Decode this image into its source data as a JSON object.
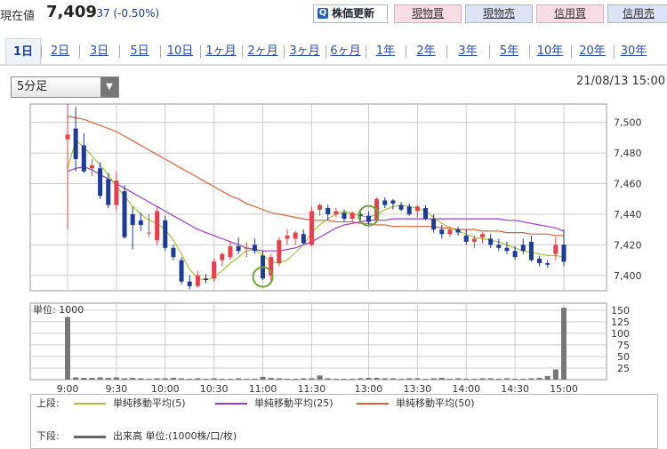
{
  "header": {
    "price_label": "現在値",
    "price_value": "7,409",
    "price_change": "-37 (-0.50%)",
    "update_button": "株価更新",
    "trade_buttons": [
      "現物買",
      "現物売",
      "信用買",
      "信用売"
    ]
  },
  "tabs": [
    "1日",
    "2日",
    "3日",
    "5日",
    "10日",
    "1ヶ月",
    "2ヶ月",
    "3ヶ月",
    "6ヶ月",
    "1年",
    "2年",
    "3年",
    "5年",
    "10年",
    "20年",
    "30年"
  ],
  "active_tab": "1日",
  "interval_select": "5分足",
  "datetime": "21/08/13 15:00",
  "colors": {
    "up": "#e0434e",
    "down": "#1f3a93",
    "ma5": "#a8c23a",
    "ma25": "#9b3fc9",
    "ma50": "#e0603a",
    "volume": "#777777"
  },
  "chart_data": {
    "type": "candlestick",
    "x_ticks": [
      "9:00",
      "9:30",
      "10:00",
      "10:30",
      "11:00",
      "11:30",
      "13:00",
      "13:30",
      "14:00",
      "14:30",
      "15:00"
    ],
    "price_ticks": [
      "7,500",
      "7,480",
      "7,460",
      "7,440",
      "7,420",
      "7,400"
    ],
    "price_ylim": [
      7390,
      7512
    ],
    "volume_ticks": [
      "150",
      "125",
      "100",
      "75",
      "50",
      "25"
    ],
    "volume_ylim": [
      0,
      165
    ],
    "volume_unit_label": "単位: 1000",
    "candles": [
      {
        "t": "9:00",
        "o": 7489,
        "h": 7512,
        "l": 7430,
        "c": 7492
      },
      {
        "t": "9:05",
        "o": 7496,
        "h": 7510,
        "l": 7468,
        "c": 7476
      },
      {
        "t": "9:10",
        "o": 7485,
        "h": 7493,
        "l": 7467,
        "c": 7468
      },
      {
        "t": "9:15",
        "o": 7470,
        "h": 7476,
        "l": 7465,
        "c": 7472
      },
      {
        "t": "9:20",
        "o": 7470,
        "h": 7474,
        "l": 7450,
        "c": 7452
      },
      {
        "t": "9:25",
        "o": 7463,
        "h": 7467,
        "l": 7444,
        "c": 7446
      },
      {
        "t": "9:30",
        "o": 7446,
        "h": 7468,
        "l": 7442,
        "c": 7462
      },
      {
        "t": "9:35",
        "o": 7455,
        "h": 7459,
        "l": 7424,
        "c": 7425
      },
      {
        "t": "9:40",
        "o": 7440,
        "h": 7445,
        "l": 7417,
        "c": 7433
      },
      {
        "t": "9:45",
        "o": 7436,
        "h": 7441,
        "l": 7429,
        "c": 7433
      },
      {
        "t": "9:50",
        "o": 7428,
        "h": 7440,
        "l": 7425,
        "c": 7428
      },
      {
        "t": "9:55",
        "o": 7423,
        "h": 7445,
        "l": 7420,
        "c": 7442
      },
      {
        "t": "10:00",
        "o": 7436,
        "h": 7439,
        "l": 7416,
        "c": 7418
      },
      {
        "t": "10:05",
        "o": 7418,
        "h": 7420,
        "l": 7410,
        "c": 7412
      },
      {
        "t": "10:10",
        "o": 7410,
        "h": 7412,
        "l": 7394,
        "c": 7396
      },
      {
        "t": "10:15",
        "o": 7396,
        "h": 7400,
        "l": 7391,
        "c": 7393
      },
      {
        "t": "10:20",
        "o": 7393,
        "h": 7403,
        "l": 7392,
        "c": 7400
      },
      {
        "t": "10:25",
        "o": 7398,
        "h": 7401,
        "l": 7395,
        "c": 7397
      },
      {
        "t": "10:30",
        "o": 7398,
        "h": 7411,
        "l": 7396,
        "c": 7409
      },
      {
        "t": "10:35",
        "o": 7410,
        "h": 7415,
        "l": 7406,
        "c": 7414
      },
      {
        "t": "10:40",
        "o": 7412,
        "h": 7422,
        "l": 7410,
        "c": 7419
      },
      {
        "t": "10:45",
        "o": 7419,
        "h": 7425,
        "l": 7414,
        "c": 7416
      },
      {
        "t": "10:50",
        "o": 7418,
        "h": 7422,
        "l": 7412,
        "c": 7418
      },
      {
        "t": "10:55",
        "o": 7420,
        "h": 7424,
        "l": 7414,
        "c": 7416
      },
      {
        "t": "11:00",
        "o": 7413,
        "h": 7416,
        "l": 7397,
        "c": 7398
      },
      {
        "t": "11:05",
        "o": 7400,
        "h": 7414,
        "l": 7396,
        "c": 7412
      },
      {
        "t": "11:10",
        "o": 7408,
        "h": 7425,
        "l": 7406,
        "c": 7423
      },
      {
        "t": "11:15",
        "o": 7424,
        "h": 7430,
        "l": 7420,
        "c": 7426
      },
      {
        "t": "11:20",
        "o": 7424,
        "h": 7429,
        "l": 7420,
        "c": 7428
      },
      {
        "t": "11:25",
        "o": 7427,
        "h": 7430,
        "l": 7420,
        "c": 7421
      },
      {
        "t": "11:30",
        "o": 7420,
        "h": 7445,
        "l": 7419,
        "c": 7442
      },
      {
        "t": "12:30",
        "o": 7443,
        "h": 7447,
        "l": 7439,
        "c": 7446
      },
      {
        "t": "12:35",
        "o": 7444,
        "h": 7446,
        "l": 7436,
        "c": 7440
      },
      {
        "t": "12:40",
        "o": 7440,
        "h": 7444,
        "l": 7438,
        "c": 7442
      },
      {
        "t": "12:45",
        "o": 7441,
        "h": 7443,
        "l": 7435,
        "c": 7437
      },
      {
        "t": "12:50",
        "o": 7437,
        "h": 7442,
        "l": 7435,
        "c": 7441
      },
      {
        "t": "12:55",
        "o": 7440,
        "h": 7442,
        "l": 7435,
        "c": 7439
      },
      {
        "t": "13:00",
        "o": 7439,
        "h": 7442,
        "l": 7432,
        "c": 7435
      },
      {
        "t": "13:05",
        "o": 7436,
        "h": 7451,
        "l": 7435,
        "c": 7450
      },
      {
        "t": "13:10",
        "o": 7449,
        "h": 7451,
        "l": 7444,
        "c": 7446
      },
      {
        "t": "13:15",
        "o": 7449,
        "h": 7450,
        "l": 7443,
        "c": 7447
      },
      {
        "t": "13:20",
        "o": 7446,
        "h": 7448,
        "l": 7442,
        "c": 7443
      },
      {
        "t": "13:25",
        "o": 7445,
        "h": 7447,
        "l": 7439,
        "c": 7440
      },
      {
        "t": "13:30",
        "o": 7442,
        "h": 7446,
        "l": 7438,
        "c": 7445
      },
      {
        "t": "13:35",
        "o": 7444,
        "h": 7446,
        "l": 7436,
        "c": 7437
      },
      {
        "t": "13:40",
        "o": 7437,
        "h": 7440,
        "l": 7428,
        "c": 7430
      },
      {
        "t": "13:45",
        "o": 7430,
        "h": 7433,
        "l": 7424,
        "c": 7427
      },
      {
        "t": "13:50",
        "o": 7427,
        "h": 7432,
        "l": 7425,
        "c": 7430
      },
      {
        "t": "13:55",
        "o": 7430,
        "h": 7432,
        "l": 7426,
        "c": 7428
      },
      {
        "t": "14:00",
        "o": 7426,
        "h": 7430,
        "l": 7420,
        "c": 7422
      },
      {
        "t": "14:05",
        "o": 7422,
        "h": 7426,
        "l": 7418,
        "c": 7424
      },
      {
        "t": "14:10",
        "o": 7425,
        "h": 7428,
        "l": 7421,
        "c": 7427
      },
      {
        "t": "14:15",
        "o": 7424,
        "h": 7427,
        "l": 7418,
        "c": 7420
      },
      {
        "t": "14:20",
        "o": 7420,
        "h": 7424,
        "l": 7416,
        "c": 7418
      },
      {
        "t": "14:25",
        "o": 7418,
        "h": 7422,
        "l": 7414,
        "c": 7416
      },
      {
        "t": "14:30",
        "o": 7416,
        "h": 7419,
        "l": 7410,
        "c": 7412
      },
      {
        "t": "14:35",
        "o": 7420,
        "h": 7424,
        "l": 7414,
        "c": 7416
      },
      {
        "t": "14:40",
        "o": 7422,
        "h": 7426,
        "l": 7409,
        "c": 7410
      },
      {
        "t": "14:45",
        "o": 7411,
        "h": 7413,
        "l": 7406,
        "c": 7408
      },
      {
        "t": "14:50",
        "o": 7408,
        "h": 7410,
        "l": 7405,
        "c": 7407
      },
      {
        "t": "14:55",
        "o": 7414,
        "h": 7425,
        "l": 7410,
        "c": 7420
      },
      {
        "t": "15:00",
        "o": 7420,
        "h": 7430,
        "l": 7406,
        "c": 7409
      }
    ],
    "volume": [
      135,
      5,
      4,
      4,
      5,
      4,
      5,
      3,
      4,
      3,
      2,
      3,
      3,
      4,
      3,
      2,
      3,
      2,
      3,
      2,
      2,
      3,
      2,
      2,
      6,
      4,
      3,
      2,
      2,
      3,
      3,
      9,
      3,
      2,
      2,
      2,
      3,
      4,
      4,
      3,
      3,
      2,
      3,
      3,
      2,
      3,
      4,
      2,
      3,
      2,
      2,
      3,
      3,
      2,
      3,
      2,
      2,
      3,
      4,
      8,
      22,
      155
    ],
    "ma5": [
      7470,
      7488,
      7484,
      7478,
      7472,
      7466,
      7458,
      7452,
      7445,
      7440,
      7436,
      7434,
      7430,
      7423,
      7414,
      7404,
      7398,
      7397,
      7399,
      7403,
      7408,
      7412,
      7416,
      7417,
      7413,
      7409,
      7408,
      7410,
      7415,
      7420,
      7428,
      7433,
      7437,
      7440,
      7442,
      7440,
      7439,
      7438,
      7440,
      7443,
      7445,
      7446,
      7445,
      7444,
      7442,
      7438,
      7434,
      7431,
      7429,
      7427,
      7425,
      7424,
      7423,
      7422,
      7420,
      7418,
      7416,
      7415,
      7414,
      7413,
      7413,
      7412
    ],
    "ma25": [
      7468,
      7470,
      7471,
      7469,
      7466,
      7463,
      7460,
      7457,
      7454,
      7451,
      7448,
      7445,
      7442,
      7439,
      7436,
      7433,
      7430,
      7428,
      7426,
      7424,
      7422,
      7420,
      7418,
      7417,
      7416,
      7416,
      7416,
      7417,
      7418,
      7420,
      7422,
      7425,
      7428,
      7431,
      7433,
      7434,
      7435,
      7436,
      7436,
      7436,
      7437,
      7437,
      7437,
      7437,
      7437,
      7437,
      7437,
      7437,
      7437,
      7437,
      7437,
      7437,
      7437,
      7437,
      7436,
      7436,
      7435,
      7434,
      7433,
      7432,
      7431,
      7429
    ],
    "ma50": [
      7504,
      7503,
      7502,
      7500,
      7498,
      7496,
      7494,
      7491,
      7488,
      7485,
      7482,
      7479,
      7476,
      7473,
      7470,
      7467,
      7464,
      7461,
      7458,
      7455,
      7452,
      7450,
      7447,
      7445,
      7443,
      7441,
      7440,
      7439,
      7438,
      7437,
      7436,
      7436,
      7436,
      7435,
      7435,
      7435,
      7434,
      7434,
      7433,
      7433,
      7432,
      7432,
      7432,
      7432,
      7432,
      7432,
      7431,
      7431,
      7430,
      7430,
      7430,
      7429,
      7429,
      7429,
      7428,
      7428,
      7428,
      7427,
      7427,
      7427,
      7426,
      7426
    ],
    "markers": [
      {
        "t": "11:00",
        "y": 7399
      },
      {
        "t": "13:00",
        "y": 7439
      }
    ],
    "legend_upper_label": "上段:",
    "legend_lower_label": "下段:",
    "series": [
      {
        "name": "単純移動平均(5)"
      },
      {
        "name": "単純移動平均(25)"
      },
      {
        "name": "単純移動平均(50)"
      },
      {
        "name": "出来高 単位:(1000株/口/枚)"
      }
    ]
  }
}
